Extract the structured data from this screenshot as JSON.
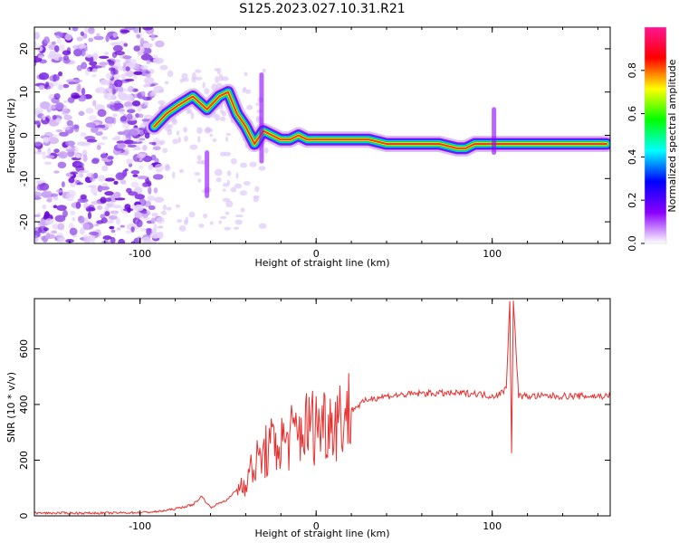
{
  "title": "S125.2023.027.10.31.R21",
  "colors": {
    "snr_line": "#e8312f",
    "axis": "#000000",
    "background": "#ffffff"
  },
  "chart_data": [
    {
      "type": "heatmap",
      "xlabel": "Height of straight line (km)",
      "ylabel": "Frequency (Hz)",
      "xlim": [
        -160,
        167
      ],
      "ylim": [
        -25,
        25
      ],
      "x_ticks": [
        -100,
        0,
        100
      ],
      "y_ticks": [
        -20,
        -10,
        0,
        10,
        20
      ],
      "grid": false,
      "colorbar": {
        "label": "Normalized spectral amplitude",
        "range": [
          0,
          1
        ],
        "ticks": [
          0.0,
          0.2,
          0.4,
          0.6,
          0.8
        ],
        "colormap": [
          "#ffffff",
          "#8b00ff",
          "#0000ff",
          "#00ffff",
          "#00ff00",
          "#ffff00",
          "#ff0000",
          "#ff1493"
        ]
      },
      "ridge": {
        "x": [
          -92,
          -85,
          -78,
          -70,
          -62,
          -55,
          -50,
          -45,
          -40,
          -35,
          -30,
          -25,
          -20,
          -15,
          -10,
          -5,
          0,
          5,
          10,
          20,
          30,
          40,
          50,
          60,
          70,
          80,
          85,
          90,
          100,
          110,
          120,
          130,
          140,
          150,
          160,
          165
        ],
        "y": [
          2,
          5,
          7,
          9,
          6,
          9,
          10,
          5,
          2,
          -2,
          1,
          0,
          -1,
          -1,
          0,
          -1,
          -1,
          -1,
          -1,
          -1,
          -1,
          -2,
          -2,
          -2,
          -2,
          -3,
          -3,
          -2,
          -2,
          -2,
          -2,
          -2,
          -2,
          -2,
          -2,
          -2
        ]
      }
    },
    {
      "type": "line",
      "xlabel": "Height of straight line (km)",
      "ylabel": "SNR (10 * v/v)",
      "xlim": [
        -160,
        167
      ],
      "ylim": [
        0,
        780
      ],
      "x_ticks": [
        -100,
        0,
        100
      ],
      "y_ticks": [
        0,
        200,
        400,
        600
      ],
      "grid": false,
      "series": [
        {
          "x": [
            -160,
            -140,
            -120,
            -100,
            -90,
            -80,
            -70,
            -65,
            -60,
            -50,
            -40,
            -35,
            -30,
            -25,
            -20,
            -15,
            -10,
            -5,
            0,
            5,
            10,
            15,
            20,
            25,
            30,
            40,
            50,
            60,
            70,
            80,
            90,
            100,
            105,
            108,
            110,
            111,
            112,
            115,
            120,
            130,
            140,
            150,
            160,
            167
          ],
          "y": [
            10,
            10,
            10,
            12,
            15,
            25,
            40,
            70,
            30,
            60,
            130,
            180,
            220,
            250,
            260,
            280,
            300,
            320,
            330,
            340,
            350,
            360,
            380,
            400,
            420,
            430,
            435,
            440,
            440,
            440,
            440,
            430,
            440,
            460,
            780,
            220,
            770,
            430,
            430,
            430,
            430,
            430,
            430,
            430
          ]
        }
      ]
    }
  ]
}
